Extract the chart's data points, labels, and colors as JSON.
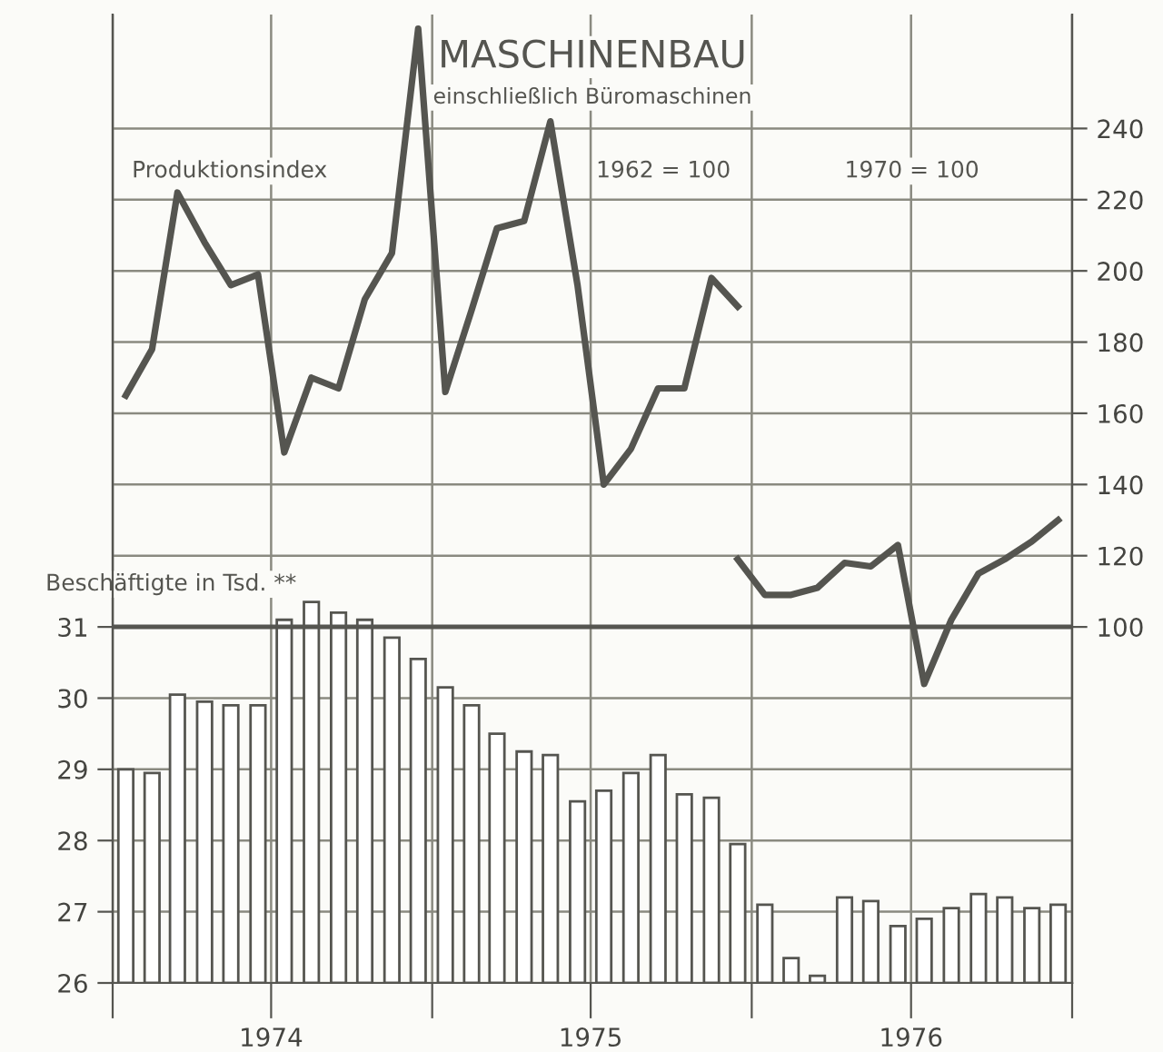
{
  "chart_data": {
    "type": "bar",
    "title": "MASCHINENBAU",
    "subtitle": "einschließlich Büromaschinen",
    "ylabel": "Beschäftigte in Tsd. **",
    "annotations": [
      "Produktionsindex",
      "1962 = 100",
      "1970 = 100"
    ],
    "x": [
      "1974-01-16",
      "1974-02-15",
      "1974-03-16",
      "1974-04-16",
      "1974-05-16",
      "1974-06-16",
      "1974-07-16",
      "1974-08-16",
      "1974-09-16",
      "1974-10-16",
      "1974-11-16",
      "1974-12-16",
      "1975-01-16",
      "1975-02-15",
      "1975-03-16",
      "1975-04-16",
      "1975-05-16",
      "1975-06-16",
      "1975-07-16",
      "1975-08-16",
      "1975-09-16",
      "1975-10-16",
      "1975-11-16",
      "1975-12-16",
      "1976-01-16",
      "1976-02-15",
      "1976-03-16",
      "1976-04-16",
      "1976-05-16",
      "1976-06-16",
      "1976-07-16",
      "1976-08-16",
      "1976-09-16",
      "1976-10-16",
      "1976-11-16",
      "1976-12-16"
    ],
    "series": [
      {
        "color": "#ffffff",
        "values": [
          29.0,
          28.95,
          30.05,
          29.95,
          29.9,
          29.9,
          31.1,
          31.35,
          31.2,
          31.1,
          30.85,
          30.55,
          30.15,
          29.9,
          29.5,
          29.25,
          29.2,
          28.55,
          28.7,
          28.95,
          29.2,
          28.65,
          28.6,
          27.95,
          27.1,
          26.35,
          26.1,
          27.2,
          27.15,
          26.8,
          26.9,
          27.05,
          27.25,
          27.2,
          27.05,
          27.1
        ]
      },
      {
        "type": "line",
        "axis": "y2",
        "color": "#555550",
        "x": [
          "1974-01-16",
          "1974-02-15",
          "1974-03-16",
          "1974-04-16",
          "1974-05-16",
          "1974-06-16",
          "1974-07-16",
          "1974-08-16",
          "1974-09-16",
          "1974-10-16",
          "1974-11-16",
          "1974-12-16",
          "1975-01-16",
          "1975-02-15",
          "1975-03-16",
          "1975-04-16",
          "1975-05-16",
          "1975-06-16",
          "1975-07-16",
          "1975-08-16",
          "1975-09-16",
          "1975-10-16",
          "1975-11-16",
          "1975-12-16"
        ],
        "values": [
          165,
          178,
          222,
          208,
          196,
          199,
          149,
          170,
          167,
          192,
          205,
          268,
          166,
          189,
          212,
          214,
          242,
          196,
          140,
          150,
          167,
          167,
          198,
          190
        ]
      },
      {
        "type": "line",
        "axis": "y2",
        "color": "#555550",
        "x": [
          "1975-12-16",
          "1976-01-16",
          "1976-02-15",
          "1976-03-16",
          "1976-04-16",
          "1976-05-16",
          "1976-06-16",
          "1976-07-16",
          "1976-08-16",
          "1976-09-16",
          "1976-10-16",
          "1976-11-16",
          "1976-12-16"
        ],
        "values": [
          119,
          109,
          109,
          111,
          118,
          117,
          123,
          84,
          102,
          115,
          119,
          124,
          130
        ]
      }
    ],
    "xlim": [
      "1974-01-01",
      "1977-01-01"
    ],
    "xticks": [
      {
        "value": "1974-01-01",
        "label": null
      },
      {
        "value": "1974-07-01",
        "label": "1974"
      },
      {
        "value": "1975-01-01",
        "label": null
      },
      {
        "value": "1975-07-01",
        "label": "1975"
      },
      {
        "value": "1976-01-01",
        "label": null
      },
      {
        "value": "1976-07-01",
        "label": "1976"
      },
      {
        "value": "1977-01-01",
        "label": null
      }
    ],
    "ylim": [
      26,
      39.6
    ],
    "yticks": [
      26,
      27,
      28,
      29,
      30,
      31
    ],
    "y2lim": [
      0,
      272
    ],
    "y2ticks": [
      100,
      120,
      140,
      160,
      180,
      200,
      220,
      240
    ],
    "ref_lines": [
      {
        "axis": "y2",
        "value": 100,
        "color": "#555550"
      }
    ],
    "grid": true,
    "legend": false,
    "marker": "none",
    "line_style": "solid"
  }
}
